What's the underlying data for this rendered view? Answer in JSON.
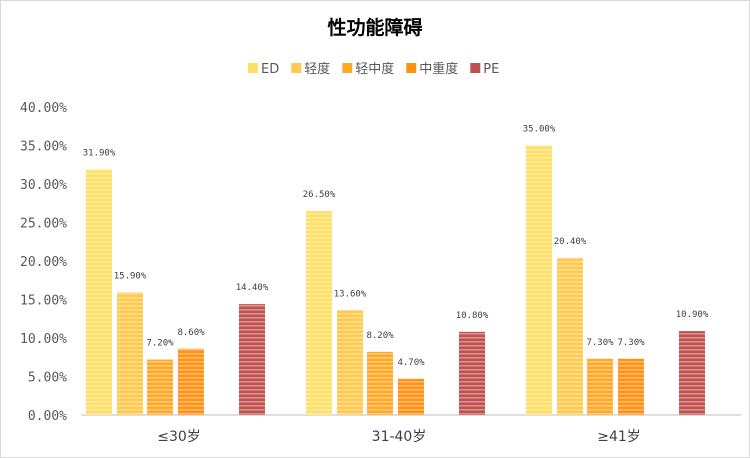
{
  "chart_data": {
    "type": "bar",
    "title": "性功能障碍",
    "categories": [
      "≤30岁",
      "31-40岁",
      "≥41岁"
    ],
    "series": [
      {
        "name": "ED",
        "color": "#FFE066",
        "values": [
          31.9,
          26.5,
          35.0
        ],
        "labels": [
          "31.90%",
          "26.50%",
          "35.00%"
        ]
      },
      {
        "name": "轻度",
        "color": "#FFC94D",
        "values": [
          15.9,
          13.6,
          20.4
        ],
        "labels": [
          "15.90%",
          "13.60%",
          "20.40%"
        ]
      },
      {
        "name": "轻中度",
        "color": "#FFA928",
        "values": [
          7.2,
          8.2,
          7.3
        ],
        "labels": [
          "7.20%",
          "8.20%",
          "7.30%"
        ]
      },
      {
        "name": "中重度",
        "color": "#FF9215",
        "values": [
          8.6,
          4.7,
          7.3
        ],
        "labels": [
          "8.60%",
          "4.70%",
          "7.30%"
        ]
      },
      {
        "name": "PE",
        "color": "#C0504D",
        "values": [
          14.4,
          10.8,
          10.9
        ],
        "labels": [
          "14.40%",
          "10.80%",
          "10.90%"
        ]
      }
    ],
    "yticks": [
      "0.00%",
      "5.00%",
      "10.00%",
      "15.00%",
      "20.00%",
      "25.00%",
      "30.00%",
      "35.00%",
      "40.00%"
    ],
    "ylim": [
      0,
      40
    ],
    "ystep": 5,
    "xlabel": "",
    "ylabel": "",
    "grid": false,
    "legend": "top"
  }
}
